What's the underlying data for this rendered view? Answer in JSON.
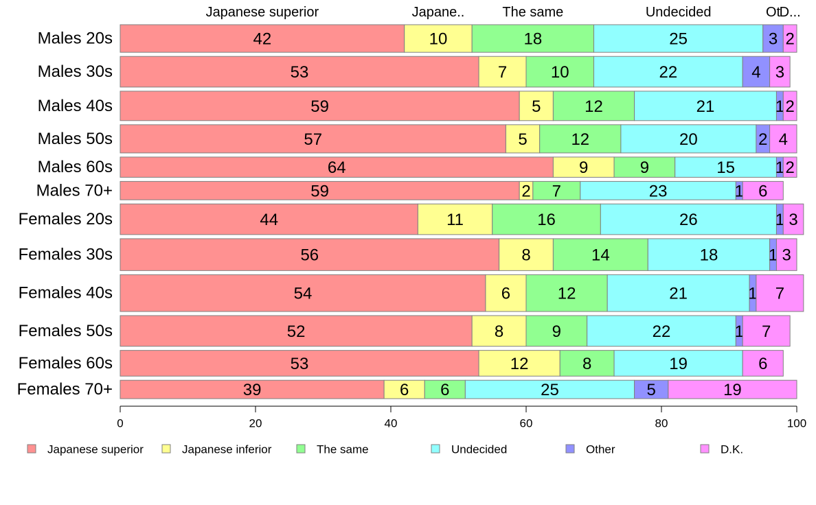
{
  "chart_data": {
    "type": "bar",
    "orientation": "horizontal",
    "stacked": true,
    "title": "",
    "xlabel": "",
    "ylabel": "",
    "xlim": [
      0,
      100
    ],
    "x_ticks": [
      0,
      20,
      40,
      60,
      80,
      100
    ],
    "grid": false,
    "legend_position": "bottom",
    "categories": [
      "Males 20s",
      "Males 30s",
      "Males 40s",
      "Males 50s",
      "Males 60s",
      "Males 70+",
      "Females 20s",
      "Females 30s",
      "Females 40s",
      "Females 50s",
      "Females 60s",
      "Females 70+"
    ],
    "series": [
      {
        "name": "Japanese superior",
        "color": "#ff9191",
        "values": [
          42,
          53,
          59,
          57,
          64,
          59,
          44,
          56,
          54,
          52,
          53,
          39
        ]
      },
      {
        "name": "Japanese inferior",
        "color": "#ffff91",
        "values": [
          10,
          7,
          5,
          5,
          9,
          2,
          11,
          8,
          6,
          8,
          12,
          6
        ]
      },
      {
        "name": "The same",
        "color": "#91ff91",
        "values": [
          18,
          10,
          12,
          12,
          9,
          7,
          16,
          14,
          12,
          9,
          8,
          6
        ]
      },
      {
        "name": "Undecided",
        "color": "#91ffff",
        "values": [
          25,
          22,
          21,
          20,
          15,
          23,
          26,
          18,
          21,
          22,
          19,
          25
        ]
      },
      {
        "name": "Other",
        "color": "#9191ff",
        "values": [
          3,
          4,
          1,
          2,
          1,
          1,
          1,
          1,
          1,
          1,
          0,
          5
        ]
      },
      {
        "name": "D.K.",
        "color": "#ff91ff",
        "values": [
          2,
          3,
          2,
          4,
          2,
          6,
          3,
          3,
          7,
          7,
          6,
          19
        ]
      }
    ],
    "top_labels": [
      "Japanese superior",
      "Japane..",
      "The same",
      "Undecided",
      "Ot",
      "D..."
    ],
    "row_weights": [
      45,
      50,
      48,
      46,
      33,
      30,
      50,
      52,
      60,
      50,
      42,
      30
    ]
  }
}
